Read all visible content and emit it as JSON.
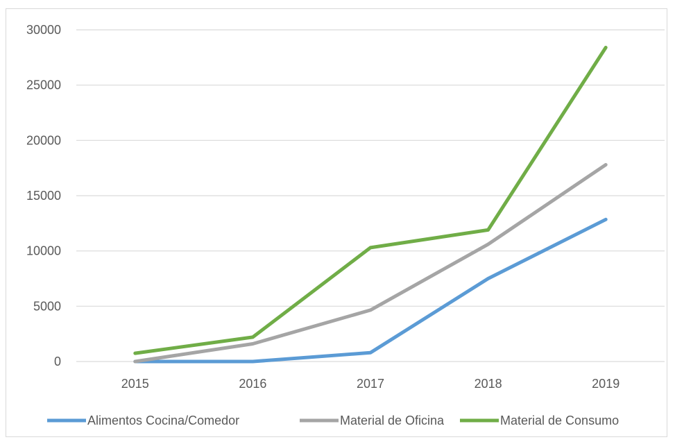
{
  "chart_data": {
    "type": "line",
    "title": "",
    "xlabel": "",
    "ylabel": "",
    "categories": [
      "2015",
      "2016",
      "2017",
      "2018",
      "2019"
    ],
    "ylim": [
      0,
      30000
    ],
    "yticks": [
      "0",
      "5000",
      "10000",
      "15000",
      "20000",
      "25000",
      "30000"
    ],
    "grid": "horizontal",
    "legend_position": "bottom",
    "series": [
      {
        "name": "Alimentos Cocina/Comedor",
        "color": "#5b9bd5",
        "values": [
          0,
          0,
          800,
          7500,
          12850
        ]
      },
      {
        "name": "Material de Oficina",
        "color": "#a5a5a5",
        "values": [
          0,
          1600,
          4650,
          10600,
          17800
        ]
      },
      {
        "name": "Material de Consumo",
        "color": "#70ad47",
        "values": [
          750,
          2200,
          10300,
          11900,
          28400
        ]
      }
    ]
  }
}
